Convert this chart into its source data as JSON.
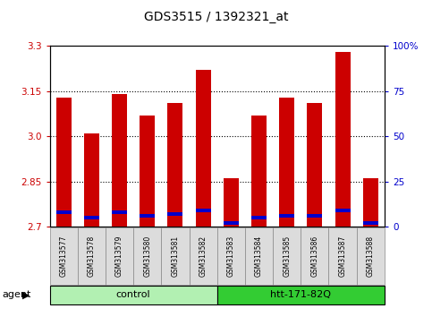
{
  "title": "GDS3515 / 1392321_at",
  "samples": [
    "GSM313577",
    "GSM313578",
    "GSM313579",
    "GSM313580",
    "GSM313581",
    "GSM313582",
    "GSM313583",
    "GSM313584",
    "GSM313585",
    "GSM313586",
    "GSM313587",
    "GSM313588"
  ],
  "red_values": [
    3.13,
    3.01,
    3.14,
    3.07,
    3.11,
    3.22,
    2.86,
    3.07,
    3.13,
    3.11,
    3.28,
    2.86
  ],
  "blue_pcts": [
    8,
    5,
    8,
    6,
    7,
    9,
    2,
    5,
    6,
    6,
    9,
    2
  ],
  "ymin": 2.7,
  "ymax": 3.3,
  "yticks_left": [
    2.7,
    2.85,
    3.0,
    3.15,
    3.3
  ],
  "yticks_right": [
    0,
    25,
    50,
    75,
    100
  ],
  "y2min": 0,
  "y2max": 100,
  "groups": [
    {
      "label": "control",
      "start": 0,
      "end": 6,
      "color": "#b2f0b2"
    },
    {
      "label": "htt-171-82Q",
      "start": 6,
      "end": 12,
      "color": "#33cc33"
    }
  ],
  "bar_color_red": "#CC0000",
  "bar_color_blue": "#0000CC",
  "bar_width": 0.55,
  "background_color": "#ffffff",
  "plot_bg_color": "#ffffff",
  "tick_color_left": "#CC0000",
  "tick_color_right": "#0000CC",
  "grid_color": "#000000",
  "title_fontsize": 10,
  "tick_fontsize": 7.5,
  "sample_fontsize": 5.5,
  "group_fontsize": 8,
  "legend_fontsize": 7.5
}
